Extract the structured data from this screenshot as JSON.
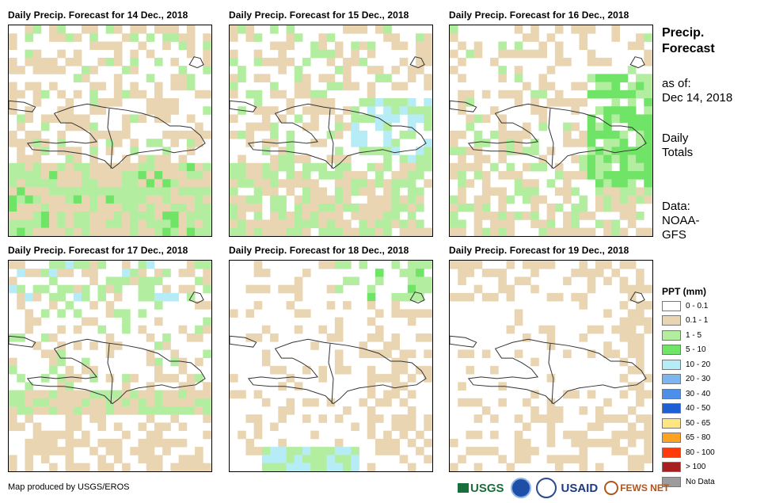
{
  "panels": [
    {
      "title": "Daily Precip. Forecast for 14 Dec., 2018"
    },
    {
      "title": "Daily Precip. Forecast for 15 Dec., 2018"
    },
    {
      "title": "Daily Precip. Forecast for 16 Dec., 2018"
    },
    {
      "title": "Daily Precip. Forecast for 17 Dec., 2018"
    },
    {
      "title": "Daily Precip. Forecast for 18 Dec., 2018"
    },
    {
      "title": "Daily Precip. Forecast for 19 Dec., 2018"
    }
  ],
  "side": {
    "title_line1": "Precip.",
    "title_line2": "Forecast",
    "asof_line1": "as of:",
    "asof_line2": "Dec 14, 2018",
    "totals_line1": "Daily",
    "totals_line2": "Totals",
    "data_line1": "Data:",
    "data_line2": "NOAA-",
    "data_line3": "GFS"
  },
  "legend": {
    "title": "PPT (mm)",
    "items": [
      {
        "label": "0 - 0.1",
        "color": "#ffffff"
      },
      {
        "label": "0.1 - 1",
        "color": "#ead5b2"
      },
      {
        "label": "1 - 5",
        "color": "#b3eea0"
      },
      {
        "label": "5 - 10",
        "color": "#6fe466"
      },
      {
        "label": "10 - 20",
        "color": "#b6ecf6"
      },
      {
        "label": "20 - 30",
        "color": "#7cb5f0"
      },
      {
        "label": "30 - 40",
        "color": "#4b8fe8"
      },
      {
        "label": "40 - 50",
        "color": "#1f5fd6"
      },
      {
        "label": "50 - 65",
        "color": "#ffe680"
      },
      {
        "label": "65 - 80",
        "color": "#ffa21f"
      },
      {
        "label": "80 - 100",
        "color": "#ff3a0a"
      },
      {
        "label": "> 100",
        "color": "#a81f1f"
      },
      {
        "label": "No Data",
        "color": "#9c9c9c"
      }
    ]
  },
  "footer": {
    "credit": "Map produced by USGS/EROS",
    "logos": [
      "USGS",
      "USAID",
      "FEWS NET"
    ]
  }
}
